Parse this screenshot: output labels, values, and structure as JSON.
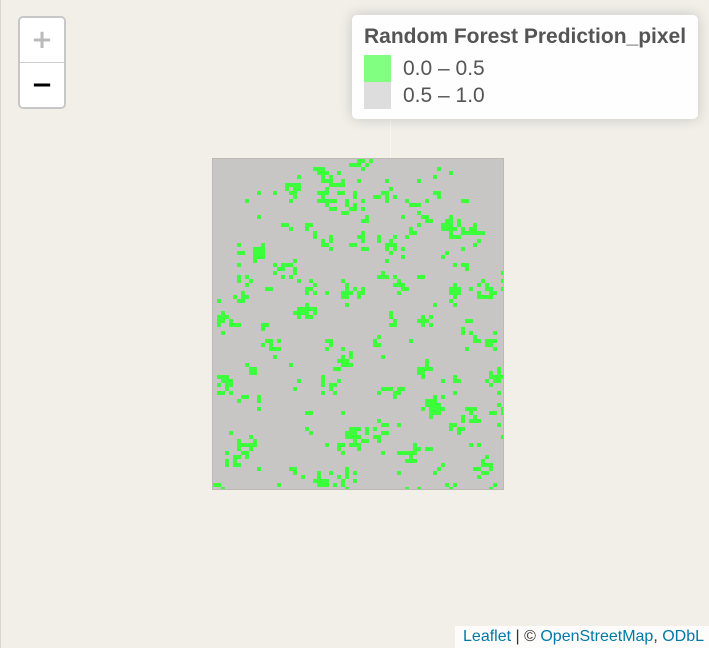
{
  "zoom": {
    "in_label": "+",
    "out_label": "−",
    "in_disabled": true
  },
  "legend": {
    "title": "Random Forest Prediction_pixel",
    "entries": [
      {
        "label": "0.0 – 0.5",
        "color": "#80ff80"
      },
      {
        "label": "0.5 – 1.0",
        "color": "#dddddd"
      }
    ]
  },
  "raster": {
    "background_color": "#c8c6c4",
    "class_color": "#3cff3c"
  },
  "attribution": {
    "leaflet": "Leaflet",
    "separator": " | © ",
    "osm": "OpenStreetMap",
    "comma": ", ",
    "odbl": "ODbL"
  }
}
